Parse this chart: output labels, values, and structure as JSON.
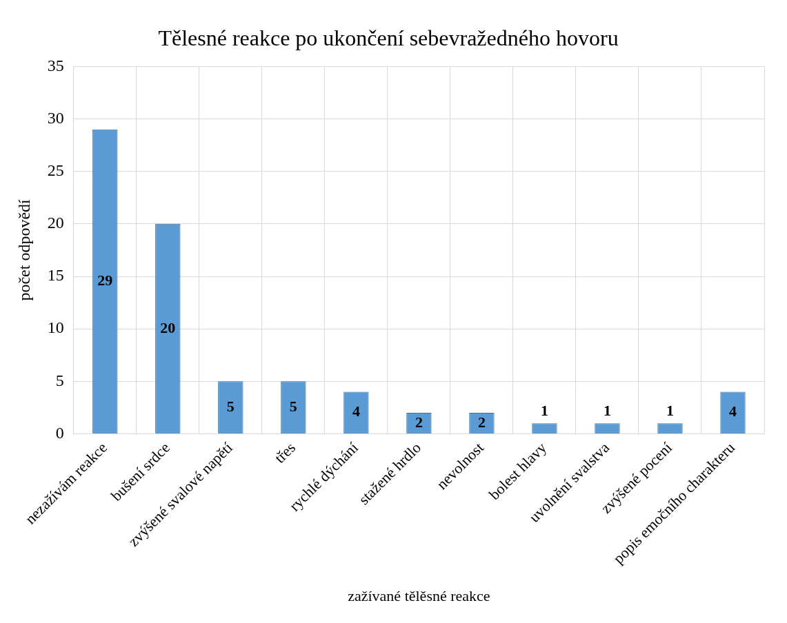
{
  "chart_data": {
    "type": "bar",
    "title": "Tělesné reakce po ukončení sebevražedného hovoru",
    "xlabel": "zažívané tělěsné reakce",
    "ylabel": "počet odpovědí",
    "categories": [
      "nezažívám reakce",
      "bušení srdce",
      "zvýšené svalové napětí",
      "třes",
      "rychlé dýchání",
      "stažené hrdlo",
      "nevolnost",
      "bolest hlavy",
      "uvolnění svalstva",
      "zvýšené pocení",
      "popis emočního charakteru"
    ],
    "values": [
      29,
      20,
      5,
      5,
      4,
      2,
      2,
      1,
      1,
      1,
      4
    ],
    "color": "#5b9bd5",
    "ylim": [
      0,
      35
    ],
    "yticks": [
      0,
      5,
      10,
      15,
      20,
      25,
      30,
      35
    ],
    "grid": true,
    "data_labels": true,
    "legend": false
  }
}
